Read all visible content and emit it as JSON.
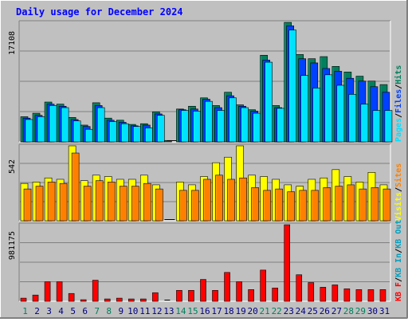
{
  "title": "Daily usage for December 2024",
  "colors": {
    "background": "#c0c0c0",
    "frame_light": "#ffffff",
    "frame_dark": "#808080",
    "title": "#0000ff",
    "hits": "#00805c",
    "files": "#0040ff",
    "pages": "#00e0ff",
    "visits": "#ffff00",
    "sites": "#ff8000",
    "kb_out": "#00a0c0",
    "kb_in": "#00a0c0",
    "kb": "#ff0000",
    "weekend_label": "#00805c",
    "weekday_label": "#000080"
  },
  "chart_data": [
    {
      "type": "bar",
      "panel": "top",
      "ymax_label": "17108",
      "ylim": [
        0,
        17108
      ],
      "legend": [
        {
          "text": "Pages",
          "color": "#00e0ff"
        },
        {
          "text": "/",
          "color": "#000000"
        },
        {
          "text": "Files",
          "color": "#0040ff"
        },
        {
          "text": "/",
          "color": "#000000"
        },
        {
          "text": "Hits",
          "color": "#00805c"
        }
      ],
      "categories": [
        "1",
        "2",
        "3",
        "4",
        "5",
        "6",
        "7",
        "8",
        "9",
        "10",
        "11",
        "12",
        "13",
        "14",
        "15",
        "16",
        "17",
        "18",
        "19",
        "20",
        "21",
        "22",
        "23",
        "24",
        "25",
        "26",
        "27",
        "28",
        "29",
        "30",
        "31"
      ],
      "series": [
        {
          "name": "Hits",
          "color": "#00805c",
          "values": [
            3600,
            4100,
            5700,
            5400,
            3500,
            2400,
            5600,
            3400,
            3100,
            2500,
            2600,
            4300,
            200,
            4700,
            5100,
            6300,
            5200,
            7100,
            5300,
            4600,
            12400,
            5200,
            17100,
            12500,
            11900,
            12200,
            10800,
            10000,
            9400,
            8700,
            8200
          ]
        },
        {
          "name": "Files",
          "color": "#0040ff",
          "values": [
            3400,
            3800,
            5400,
            5100,
            3200,
            2200,
            5200,
            3100,
            2800,
            2300,
            2400,
            4000,
            100,
            4600,
            4700,
            6100,
            4900,
            6600,
            5100,
            4400,
            11700,
            4900,
            16600,
            11900,
            11300,
            10500,
            10100,
            9100,
            8700,
            7900,
            7100
          ]
        },
        {
          "name": "Pages",
          "color": "#00e0ff",
          "values": [
            3200,
            3600,
            5200,
            4900,
            3000,
            1800,
            4900,
            2900,
            2600,
            2200,
            2000,
            3800,
            0,
            4500,
            4400,
            5800,
            4500,
            6300,
            4900,
            4100,
            11400,
            4800,
            16000,
            9500,
            7700,
            9600,
            8100,
            6800,
            5400,
            4500,
            4500
          ]
        }
      ]
    },
    {
      "type": "bar",
      "panel": "middle",
      "ymax_label": "542",
      "ylim": [
        0,
        542
      ],
      "legend": [
        {
          "text": "Visits",
          "color": "#ffff00"
        },
        {
          "text": "/",
          "color": "#000000"
        },
        {
          "text": "Sites",
          "color": "#ff8000"
        }
      ],
      "categories": [
        "1",
        "2",
        "3",
        "4",
        "5",
        "6",
        "7",
        "8",
        "9",
        "10",
        "11",
        "12",
        "13",
        "14",
        "15",
        "16",
        "17",
        "18",
        "19",
        "20",
        "21",
        "22",
        "23",
        "24",
        "25",
        "26",
        "27",
        "28",
        "29",
        "30",
        "31"
      ],
      "series": [
        {
          "name": "Visits",
          "color": "#ffff00",
          "values": [
            270,
            280,
            310,
            300,
            542,
            290,
            330,
            320,
            300,
            300,
            330,
            260,
            0,
            280,
            260,
            320,
            420,
            460,
            542,
            330,
            320,
            300,
            260,
            250,
            300,
            310,
            370,
            320,
            280,
            350,
            260
          ]
        },
        {
          "name": "Sites",
          "color": "#ff8000",
          "values": [
            230,
            250,
            280,
            270,
            490,
            250,
            290,
            280,
            250,
            250,
            270,
            230,
            0,
            220,
            220,
            300,
            330,
            300,
            310,
            240,
            220,
            230,
            210,
            220,
            220,
            240,
            250,
            260,
            230,
            240,
            230
          ]
        }
      ]
    },
    {
      "type": "bar",
      "panel": "bottom",
      "ymax_label": "981175",
      "ylim": [
        0,
        981175
      ],
      "legend": [
        {
          "text": "KB F",
          "color": "#ff0000"
        },
        {
          "text": "/",
          "color": "#000000"
        },
        {
          "text": "KB In",
          "color": "#00a0c0"
        },
        {
          "text": "/",
          "color": "#000000"
        },
        {
          "text": "KB Out",
          "color": "#00a0c0"
        }
      ],
      "categories": [
        "1",
        "2",
        "3",
        "4",
        "5",
        "6",
        "7",
        "8",
        "9",
        "10",
        "11",
        "12",
        "13",
        "14",
        "15",
        "16",
        "17",
        "18",
        "19",
        "20",
        "21",
        "22",
        "23",
        "24",
        "25",
        "26",
        "27",
        "28",
        "29",
        "30",
        "31"
      ],
      "series": [
        {
          "name": "KB F",
          "color": "#ff0000",
          "values": [
            40000,
            80000,
            250000,
            250000,
            100000,
            20000,
            270000,
            30000,
            40000,
            30000,
            30000,
            110000,
            0,
            140000,
            140000,
            280000,
            140000,
            370000,
            250000,
            150000,
            400000,
            170000,
            981175,
            340000,
            240000,
            180000,
            210000,
            160000,
            150000,
            150000,
            150000
          ]
        }
      ]
    }
  ],
  "x_axis": {
    "labels": [
      "1",
      "2",
      "3",
      "4",
      "5",
      "6",
      "7",
      "8",
      "9",
      "10",
      "11",
      "12",
      "13",
      "14",
      "15",
      "16",
      "17",
      "18",
      "19",
      "20",
      "21",
      "22",
      "23",
      "24",
      "25",
      "26",
      "27",
      "28",
      "29",
      "30",
      "31"
    ],
    "weekend_days": [
      "1",
      "7",
      "8",
      "14",
      "15",
      "21",
      "22",
      "28",
      "29"
    ]
  }
}
